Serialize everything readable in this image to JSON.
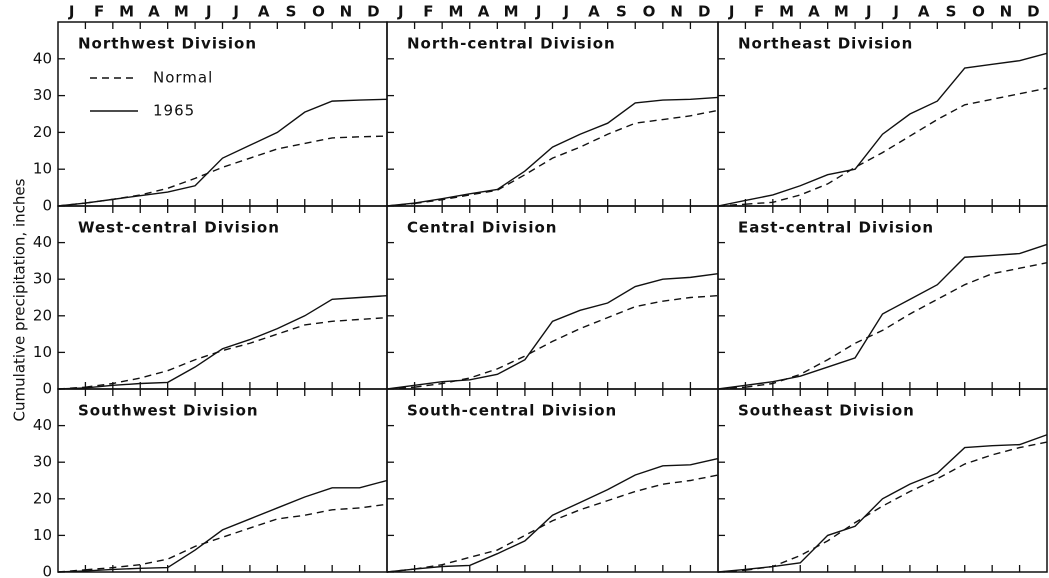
{
  "y_label": "Cumulative precipitation, inches",
  "months": [
    "J",
    "F",
    "M",
    "A",
    "M",
    "J",
    "J",
    "A",
    "S",
    "O",
    "N",
    "D"
  ],
  "chart_data": [
    {
      "type": "line",
      "title": "Northwest Division",
      "legend": true,
      "ylim": [
        0,
        50
      ],
      "yticks": [
        0,
        10,
        20,
        30,
        40
      ],
      "series": [
        {
          "name": "Normal",
          "color": "#111",
          "dash": true,
          "values": [
            0.8,
            1.8,
            3,
            4.8,
            7.5,
            10.5,
            13,
            15.5,
            17,
            18.5,
            18.8,
            19
          ]
        },
        {
          "name": "1965",
          "color": "#111",
          "dash": false,
          "values": [
            0.8,
            1.8,
            2.8,
            3.8,
            5.5,
            13,
            16.5,
            20,
            25.5,
            28.5,
            28.8,
            29
          ]
        }
      ]
    },
    {
      "type": "line",
      "title": "North-central Division",
      "legend": false,
      "ylim": [
        0,
        50
      ],
      "yticks": [
        0,
        10,
        20,
        30,
        40
      ],
      "series": [
        {
          "name": "Normal",
          "color": "#111",
          "dash": true,
          "values": [
            0.7,
            1.7,
            3,
            4.3,
            8.5,
            13,
            16,
            19.5,
            22.5,
            23.5,
            24.5,
            26
          ]
        },
        {
          "name": "1965",
          "color": "#111",
          "dash": false,
          "values": [
            0.8,
            2,
            3.3,
            4.5,
            9.5,
            16,
            19.5,
            22.5,
            28,
            28.8,
            29,
            29.5
          ]
        }
      ]
    },
    {
      "type": "line",
      "title": "Northeast Division",
      "legend": false,
      "ylim": [
        0,
        50
      ],
      "yticks": [
        0,
        10,
        20,
        30,
        40
      ],
      "series": [
        {
          "name": "Normal",
          "color": "#111",
          "dash": true,
          "values": [
            0.5,
            1,
            3,
            6,
            10.5,
            14.5,
            19,
            23.5,
            27.5,
            29,
            30.5,
            32
          ]
        },
        {
          "name": "1965",
          "color": "#111",
          "dash": false,
          "values": [
            1.5,
            3,
            5.5,
            8.5,
            10,
            19.5,
            25,
            28.5,
            37.5,
            38.5,
            39.5,
            41.5
          ]
        }
      ]
    },
    {
      "type": "line",
      "title": "West-central Division",
      "legend": false,
      "ylim": [
        0,
        50
      ],
      "yticks": [
        0,
        10,
        20,
        30,
        40
      ],
      "series": [
        {
          "name": "Normal",
          "color": "#111",
          "dash": true,
          "values": [
            0.5,
            1.5,
            3,
            5,
            8,
            10.5,
            12.5,
            15,
            17.5,
            18.5,
            19,
            19.5
          ]
        },
        {
          "name": "1965",
          "color": "#111",
          "dash": false,
          "values": [
            0.3,
            1,
            1.5,
            1.8,
            6,
            11,
            13.5,
            16.5,
            20,
            24.5,
            25,
            25.5
          ]
        }
      ]
    },
    {
      "type": "line",
      "title": "Central Division",
      "legend": false,
      "ylim": [
        0,
        50
      ],
      "yticks": [
        0,
        10,
        20,
        30,
        40
      ],
      "series": [
        {
          "name": "Normal",
          "color": "#111",
          "dash": true,
          "values": [
            0.5,
            1.5,
            3,
            5.5,
            9,
            13,
            16.5,
            19.5,
            22.5,
            24,
            25,
            25.5
          ]
        },
        {
          "name": "1965",
          "color": "#111",
          "dash": false,
          "values": [
            1,
            2,
            2.5,
            4,
            8,
            18.5,
            21.5,
            23.5,
            28,
            30,
            30.5,
            31.5
          ]
        }
      ]
    },
    {
      "type": "line",
      "title": "East-central Division",
      "legend": false,
      "ylim": [
        0,
        50
      ],
      "yticks": [
        0,
        10,
        20,
        30,
        40
      ],
      "series": [
        {
          "name": "Normal",
          "color": "#111",
          "dash": true,
          "values": [
            0.5,
            1.5,
            4,
            8,
            12.5,
            16,
            20.5,
            24.5,
            28.5,
            31.5,
            33,
            34.5
          ]
        },
        {
          "name": "1965",
          "color": "#111",
          "dash": false,
          "values": [
            1,
            2,
            3.5,
            6,
            8.5,
            20.5,
            24.5,
            28.5,
            36,
            36.5,
            37,
            39.5
          ]
        }
      ]
    },
    {
      "type": "line",
      "title": "Southwest Division",
      "legend": false,
      "ylim": [
        0,
        50
      ],
      "yticks": [
        0,
        10,
        20,
        30,
        40
      ],
      "series": [
        {
          "name": "Normal",
          "color": "#111",
          "dash": true,
          "values": [
            0.6,
            1.2,
            2,
            3.5,
            7,
            9.5,
            12,
            14.5,
            15.5,
            17,
            17.5,
            18.5
          ]
        },
        {
          "name": "1965",
          "color": "#111",
          "dash": false,
          "values": [
            0.3,
            0.7,
            1,
            1.2,
            6,
            11.5,
            14.5,
            17.5,
            20.5,
            23,
            23,
            25
          ]
        }
      ]
    },
    {
      "type": "line",
      "title": "South-central Division",
      "legend": false,
      "ylim": [
        0,
        50
      ],
      "yticks": [
        0,
        10,
        20,
        30,
        40
      ],
      "series": [
        {
          "name": "Normal",
          "color": "#111",
          "dash": true,
          "values": [
            0.8,
            2,
            4,
            6,
            10,
            14,
            17,
            19.5,
            22,
            24,
            25,
            26.5
          ]
        },
        {
          "name": "1965",
          "color": "#111",
          "dash": false,
          "values": [
            0.8,
            1.5,
            1.8,
            5,
            8.5,
            15.5,
            19,
            22.5,
            26.5,
            29,
            29.3,
            31
          ]
        }
      ]
    },
    {
      "type": "line",
      "title": "Southeast Division",
      "legend": false,
      "ylim": [
        0,
        50
      ],
      "yticks": [
        0,
        10,
        20,
        30,
        40
      ],
      "series": [
        {
          "name": "Normal",
          "color": "#111",
          "dash": true,
          "values": [
            0.5,
            1.5,
            4.5,
            8.5,
            13.5,
            18,
            22,
            25.5,
            29.5,
            32,
            34,
            35.5
          ]
        },
        {
          "name": "1965",
          "color": "#111",
          "dash": false,
          "values": [
            0.7,
            1.5,
            2.5,
            10,
            12.5,
            20,
            24,
            27,
            34,
            34.5,
            34.8,
            37.5
          ]
        }
      ]
    }
  ]
}
